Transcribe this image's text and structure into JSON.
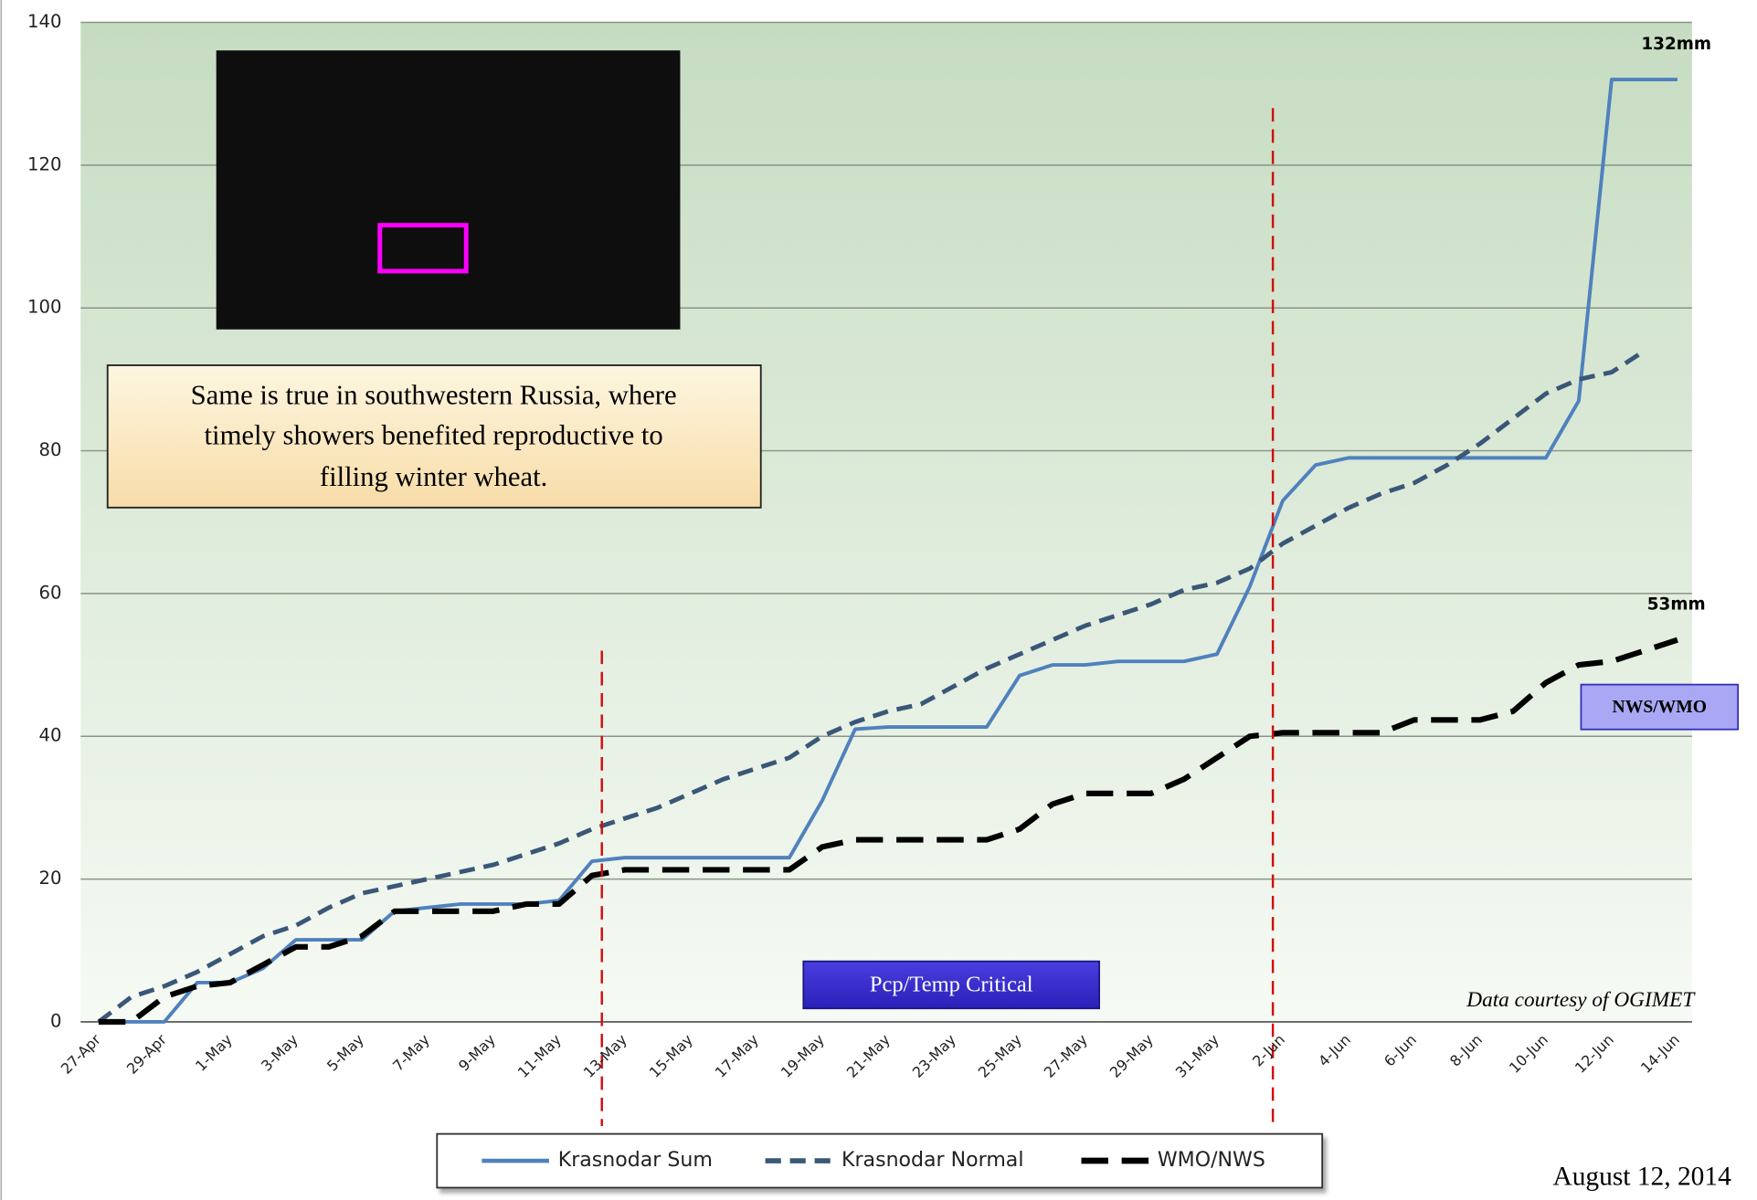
{
  "chart_data": {
    "type": "line",
    "categories": [
      "27-Apr",
      null,
      "29-Apr",
      null,
      "1-May",
      null,
      "3-May",
      null,
      "5-May",
      null,
      "7-May",
      null,
      "9-May",
      null,
      "11-May",
      null,
      "13-May",
      null,
      "15-May",
      null,
      "17-May",
      null,
      "19-May",
      null,
      "21-May",
      null,
      "23-May",
      null,
      "25-May",
      null,
      "27-May",
      null,
      "29-May",
      null,
      "31-May",
      null,
      "2-Jun",
      null,
      "4-Jun",
      null,
      "6-Jun",
      null,
      "8-Jun",
      null,
      "10-Jun",
      null,
      "12-Jun",
      null,
      "14-Jun"
    ],
    "series": [
      {
        "name": "Krasnodar Sum",
        "color": "#4f81bd",
        "dash": "solid",
        "values": [
          0,
          0,
          0,
          5.5,
          5.5,
          7.5,
          11.5,
          11.5,
          11.5,
          15.5,
          16,
          16.5,
          16.5,
          16.5,
          17,
          22.5,
          23,
          23,
          23,
          23,
          23,
          23,
          31,
          41,
          41.3,
          41.3,
          41.3,
          41.3,
          48.5,
          50,
          50,
          50.5,
          50.5,
          50.5,
          51.5,
          61,
          73,
          78,
          79,
          79,
          79,
          79,
          79,
          79,
          79,
          87,
          132,
          132,
          132
        ]
      },
      {
        "name": "Krasnodar Normal",
        "color": "#3a5778",
        "dash": "short",
        "values": [
          0,
          3.5,
          5,
          7,
          9.5,
          12,
          13.5,
          16,
          18,
          19,
          20,
          21,
          22,
          23.5,
          25,
          27,
          28.5,
          30,
          32,
          34,
          35.5,
          37,
          40,
          42,
          43.5,
          44.5,
          47,
          49.5,
          51.5,
          53.5,
          55.5,
          57,
          58.5,
          60.5,
          61.5,
          63.5,
          67,
          69.5,
          72,
          74,
          75.5,
          78,
          81,
          84.5,
          88,
          90,
          91,
          94,
          null
        ]
      },
      {
        "name": "WMO/NWS",
        "color": "#000000",
        "dash": "long",
        "values": [
          0,
          0,
          3.5,
          5,
          5.5,
          8,
          10.5,
          10.5,
          12,
          15.5,
          15.5,
          15.5,
          15.5,
          16.5,
          16.5,
          20.5,
          21.3,
          21.3,
          21.3,
          21.3,
          21.3,
          21.3,
          24.5,
          25.5,
          25.5,
          25.5,
          25.5,
          25.5,
          27,
          30.5,
          32,
          32,
          32,
          34,
          37,
          40,
          40.5,
          40.5,
          40.5,
          40.5,
          42.3,
          42.3,
          42.3,
          43.5,
          47.5,
          50,
          50.5,
          52,
          53.5
        ]
      }
    ],
    "ylim": [
      0,
      140
    ],
    "yticks": [
      0,
      20,
      40,
      60,
      80,
      100,
      120,
      140
    ],
    "grid": true,
    "critical_markers": [
      {
        "x": 15.3,
        "y": 52
      },
      {
        "x": 35.7,
        "y": 128
      }
    ],
    "end_labels": [
      "132mm",
      "53mm"
    ],
    "source_label": "NWS/WMO",
    "period_label": "Pcp/Temp Critical",
    "note_lines": [
      "Same is true in southwestern Russia, where",
      "timely showers benefited reproductive to",
      "filling winter wheat."
    ],
    "credit": "Data courtesy of OGIMET",
    "date": "August 12, 2014"
  }
}
